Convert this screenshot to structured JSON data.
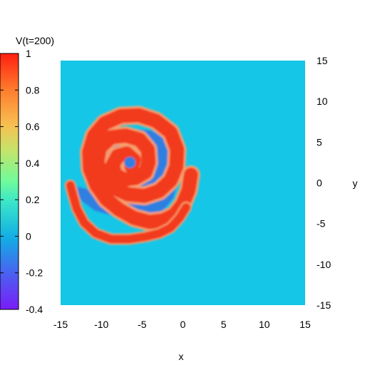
{
  "chart_data": {
    "type": "heatmap",
    "title": "V(t=200)",
    "xlabel": "x",
    "ylabel": "y",
    "xlim": [
      -15,
      15
    ],
    "ylim": [
      -15,
      15
    ],
    "x_ticks": [
      "-15",
      "-10",
      "-5",
      "0",
      "5",
      "10",
      "15"
    ],
    "y_ticks": [
      "15",
      "10",
      "5",
      "0",
      "-5",
      "-10",
      "-15"
    ],
    "colorbar": {
      "range": [
        -0.4,
        1
      ],
      "ticks": [
        "1",
        "0.8",
        "0.6",
        "0.4",
        "0.2",
        "0",
        "-0.2",
        "-0.4"
      ],
      "palette": "rainbow"
    },
    "field": {
      "background_value": 0,
      "background_color": "#15c6e6",
      "excited_value": 1,
      "excited_color": "#f23a1e",
      "refractory_value": -0.15,
      "refractory_color": "#2f7fe0",
      "spiral_tip": [
        -6.5,
        2.5
      ],
      "description_free": true
    },
    "spiral_band": [
      [
        -6.3,
        2.0
      ],
      [
        -6.0,
        2.8
      ],
      [
        -6.9,
        3.6
      ],
      [
        -8.0,
        3.3
      ],
      [
        -8.6,
        2.2
      ],
      [
        -8.3,
        1.0
      ],
      [
        -7.2,
        0.4
      ],
      [
        -5.8,
        0.6
      ],
      [
        -4.6,
        1.3
      ],
      [
        -4.2,
        2.5
      ],
      [
        -4.3,
        4.1
      ],
      [
        -5.3,
        5.3
      ],
      [
        -7.0,
        5.8
      ],
      [
        -8.8,
        5.6
      ],
      [
        -10.2,
        4.3
      ],
      [
        -10.5,
        2.5
      ],
      [
        -9.8,
        0.8
      ],
      [
        -8.5,
        -0.6
      ],
      [
        -6.8,
        -1.4
      ],
      [
        -4.7,
        -1.6
      ],
      [
        -2.9,
        -1.0
      ],
      [
        -1.5,
        0.3
      ],
      [
        -0.8,
        2.0
      ],
      [
        -0.7,
        4.1
      ],
      [
        -1.5,
        6.2
      ],
      [
        -3.3,
        7.6
      ],
      [
        -5.4,
        8.3
      ],
      [
        -7.6,
        8.2
      ],
      [
        -9.6,
        7.3
      ],
      [
        -10.9,
        5.8
      ],
      [
        -11.5,
        3.8
      ],
      [
        -11.4,
        1.7
      ],
      [
        -10.6,
        -0.3
      ],
      [
        -9.4,
        -2.0
      ],
      [
        -7.8,
        -3.3
      ],
      [
        -6.0,
        -4.3
      ],
      [
        -4.1,
        -4.8
      ],
      [
        -2.4,
        -4.6
      ],
      [
        -1.0,
        -3.9
      ],
      [
        0.0,
        -2.6
      ],
      [
        0.7,
        -0.9
      ],
      [
        1.0,
        1.0
      ]
    ],
    "tail_band": [
      [
        -13.8,
        -0.3
      ],
      [
        -13.5,
        -1.5
      ],
      [
        -13.0,
        -3.2
      ],
      [
        -12.1,
        -4.9
      ],
      [
        -10.7,
        -6.2
      ],
      [
        -8.8,
        -6.9
      ],
      [
        -6.6,
        -6.9
      ],
      [
        -4.6,
        -6.6
      ],
      [
        -2.9,
        -6.2
      ],
      [
        -1.5,
        -5.5
      ],
      [
        -0.4,
        -4.3
      ],
      [
        0.4,
        -3.0
      ]
    ]
  }
}
